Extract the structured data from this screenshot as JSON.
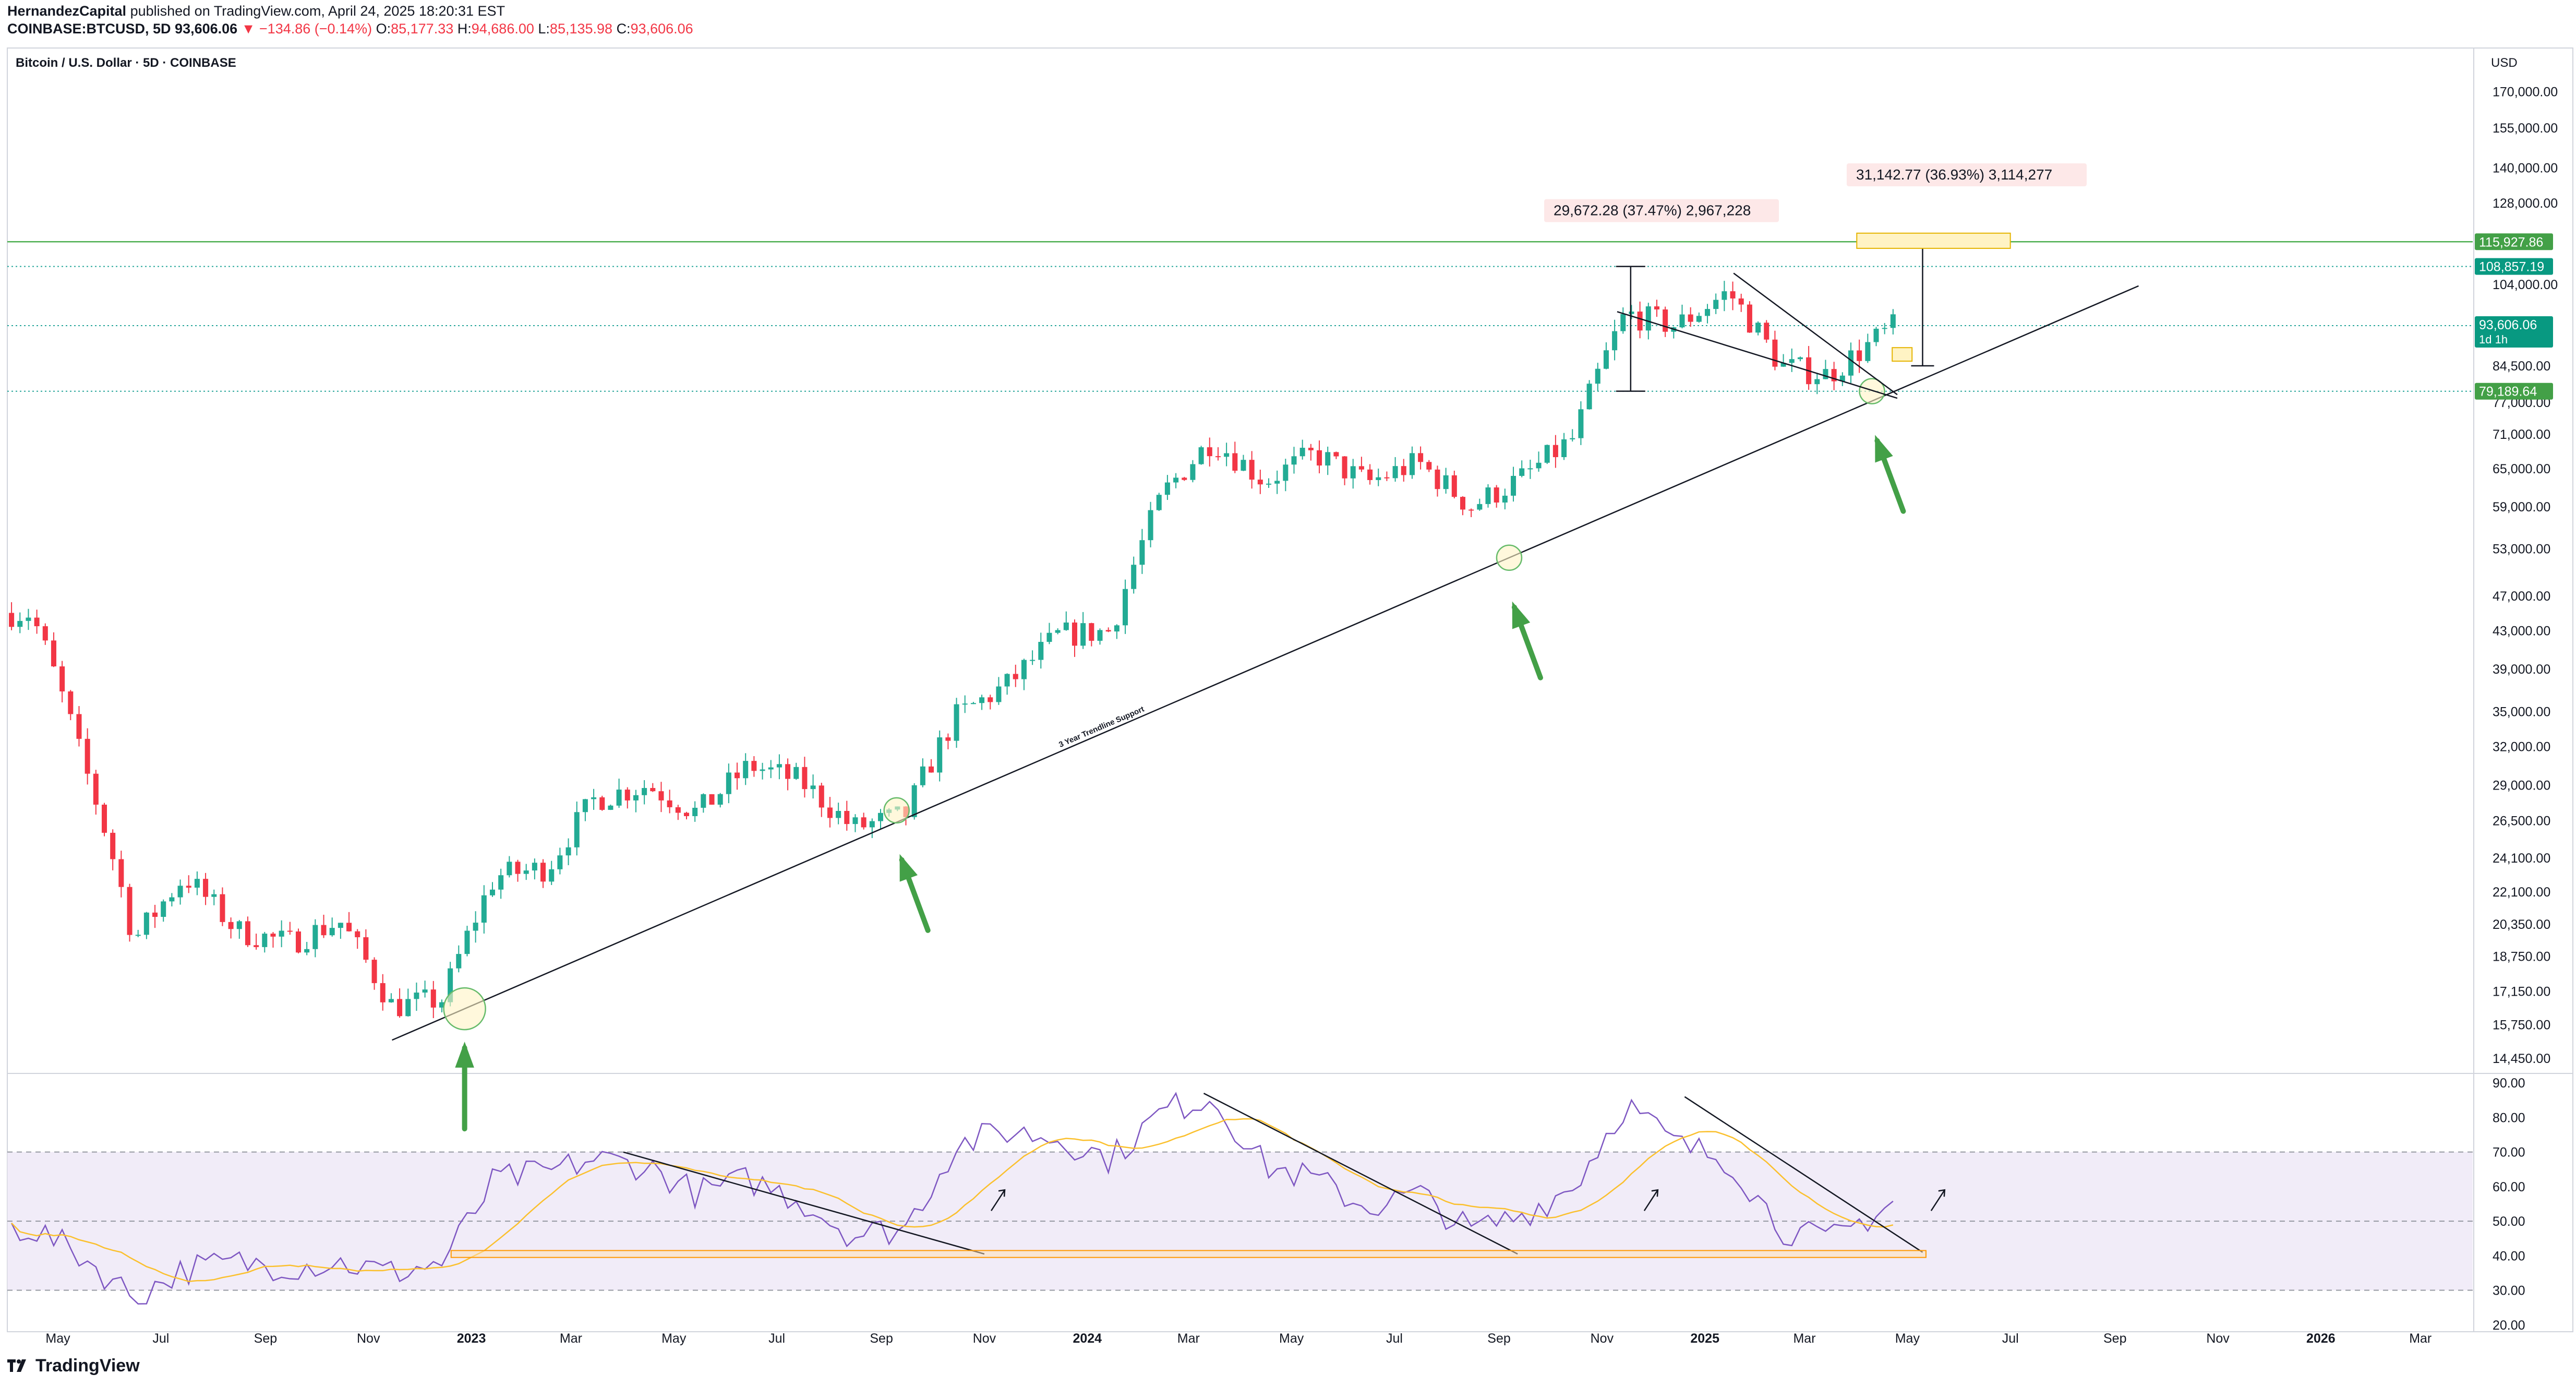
{
  "header": {
    "author": "HernandezCapital",
    "published_text": "published on TradingView.com, April 24, 2025 18:20:31 EST",
    "symbol_line": "COINBASE:BTCUSD, 5D",
    "last": "93,606.06",
    "change": "▼ −134.86 (−0.14%)",
    "o_label": "O:",
    "o_val": "85,177.33",
    "h_label": "H:",
    "h_val": "94,686.00",
    "l_label": "L:",
    "l_val": "85,135.98",
    "c_label": "C:",
    "c_val": "93,606.06"
  },
  "footer": {
    "brand": "TradingView",
    "logo_icon": "tradingview-logo-icon"
  },
  "colors": {
    "up": "#22ab94",
    "down": "#f23645",
    "rsi": "#7e57c2",
    "rsi_ma": "#fbc02d",
    "green_line": "#4caf50",
    "band": "#ede7f6"
  },
  "chart_data": {
    "type": "candlestick",
    "title": "Bitcoin / U.S. Dollar · 5D · COINBASE",
    "currency": "USD",
    "y_scale": "log",
    "ylim": [
      14000,
      190000
    ],
    "y_ticks": [
      "170,000.00",
      "155,000.00",
      "140,000.00",
      "128,000.00",
      "104,000.00",
      "84,500.00",
      "77,000.00",
      "71,000.00",
      "65,000.00",
      "59,000.00",
      "53,000.00",
      "47,000.00",
      "43,000.00",
      "39,000.00",
      "35,000.00",
      "32,000.00",
      "29,000.00",
      "26,500.00",
      "24,100.00",
      "22,100.00",
      "20,350.00",
      "18,750.00",
      "17,150.00",
      "15,750.00",
      "14,450.00"
    ],
    "x_ticks": [
      "May",
      "Jul",
      "Sep",
      "Nov",
      "2023",
      "Mar",
      "May",
      "Jul",
      "Sep",
      "Nov",
      "2024",
      "Mar",
      "May",
      "Jul",
      "Sep",
      "Nov",
      "2025",
      "Mar",
      "May",
      "Jul",
      "Sep",
      "Nov",
      "2026",
      "Mar"
    ],
    "price_labels": [
      {
        "text": "115,927.86",
        "style": "green"
      },
      {
        "text": "108,857.19",
        "style": "teal"
      },
      {
        "text": "93,606.06",
        "sub": "1d 1h",
        "style": "teal"
      },
      {
        "text": "79,189.64",
        "style": "green"
      }
    ],
    "levels": [
      115927.86,
      108857.19,
      93606.06,
      79189.64
    ],
    "measure_labels": [
      {
        "text": "29,672.28 (37.47%) 2,967,228"
      },
      {
        "text": "31,142.77 (36.93%) 3,114,277"
      }
    ],
    "trendline_label": "3 Year Trendline Support",
    "candles_monthly_anchor": [
      {
        "t": "2022-04",
        "p": 45000
      },
      {
        "t": "2022-05",
        "p": 31000
      },
      {
        "t": "2022-06",
        "p": 19500
      },
      {
        "t": "2022-07",
        "p": 23000
      },
      {
        "t": "2022-08",
        "p": 20000
      },
      {
        "t": "2022-09",
        "p": 19400
      },
      {
        "t": "2022-10",
        "p": 20500
      },
      {
        "t": "2022-11",
        "p": 16500
      },
      {
        "t": "2022-12",
        "p": 16800
      },
      {
        "t": "2023-01",
        "p": 23000
      },
      {
        "t": "2023-02",
        "p": 23500
      },
      {
        "t": "2023-03",
        "p": 28000
      },
      {
        "t": "2023-04",
        "p": 29000
      },
      {
        "t": "2023-05",
        "p": 27000
      },
      {
        "t": "2023-06",
        "p": 30500
      },
      {
        "t": "2023-07",
        "p": 29300
      },
      {
        "t": "2023-08",
        "p": 26000
      },
      {
        "t": "2023-09",
        "p": 26800
      },
      {
        "t": "2023-10",
        "p": 34500
      },
      {
        "t": "2023-11",
        "p": 37500
      },
      {
        "t": "2023-12",
        "p": 42500
      },
      {
        "t": "2024-01",
        "p": 43000
      },
      {
        "t": "2024-02",
        "p": 61000
      },
      {
        "t": "2024-03",
        "p": 70000
      },
      {
        "t": "2024-04",
        "p": 63000
      },
      {
        "t": "2024-05",
        "p": 67500
      },
      {
        "t": "2024-06",
        "p": 62700
      },
      {
        "t": "2024-07",
        "p": 66000
      },
      {
        "t": "2024-08",
        "p": 59000
      },
      {
        "t": "2024-09",
        "p": 63500
      },
      {
        "t": "2024-10",
        "p": 70200
      },
      {
        "t": "2024-11",
        "p": 96500
      },
      {
        "t": "2024-12",
        "p": 93500
      },
      {
        "t": "2025-01",
        "p": 102000
      },
      {
        "t": "2025-02",
        "p": 84500
      },
      {
        "t": "2025-03",
        "p": 82500
      },
      {
        "t": "2025-04-24",
        "p": 93606
      }
    ],
    "rsi": {
      "y_ticks": [
        "90.00",
        "80.00",
        "70.00",
        "60.00",
        "50.00",
        "40.00",
        "30.00",
        "20.00"
      ],
      "ylim": [
        18,
        92
      ],
      "band": [
        30,
        70
      ],
      "mid": 50,
      "monthly_anchor": [
        {
          "t": "2022-04",
          "v": 48
        },
        {
          "t": "2022-05",
          "v": 40
        },
        {
          "t": "2022-06",
          "v": 28
        },
        {
          "t": "2022-07",
          "v": 36
        },
        {
          "t": "2022-08",
          "v": 38
        },
        {
          "t": "2022-09",
          "v": 37
        },
        {
          "t": "2022-10",
          "v": 38
        },
        {
          "t": "2022-11",
          "v": 35
        },
        {
          "t": "2022-12",
          "v": 38
        },
        {
          "t": "2023-01",
          "v": 62
        },
        {
          "t": "2023-02",
          "v": 64
        },
        {
          "t": "2023-03",
          "v": 68
        },
        {
          "t": "2023-04",
          "v": 66
        },
        {
          "t": "2023-05",
          "v": 58
        },
        {
          "t": "2023-06",
          "v": 62
        },
        {
          "t": "2023-07",
          "v": 56
        },
        {
          "t": "2023-08",
          "v": 46
        },
        {
          "t": "2023-09",
          "v": 48
        },
        {
          "t": "2023-10",
          "v": 72
        },
        {
          "t": "2023-11",
          "v": 76
        },
        {
          "t": "2023-12",
          "v": 74
        },
        {
          "t": "2024-01",
          "v": 68
        },
        {
          "t": "2024-02",
          "v": 82
        },
        {
          "t": "2024-03",
          "v": 86
        },
        {
          "t": "2024-04",
          "v": 66
        },
        {
          "t": "2024-05",
          "v": 62
        },
        {
          "t": "2024-06",
          "v": 54
        },
        {
          "t": "2024-07",
          "v": 58
        },
        {
          "t": "2024-08",
          "v": 47
        },
        {
          "t": "2024-09",
          "v": 52
        },
        {
          "t": "2024-10",
          "v": 60
        },
        {
          "t": "2024-11",
          "v": 84
        },
        {
          "t": "2024-12",
          "v": 72
        },
        {
          "t": "2025-01",
          "v": 68
        },
        {
          "t": "2025-02",
          "v": 48
        },
        {
          "t": "2025-03",
          "v": 44
        },
        {
          "t": "2025-04-24",
          "v": 56
        }
      ]
    },
    "marked_points": [
      {
        "t": "2022-12-28",
        "p": 16400
      },
      {
        "t": "2023-09-10",
        "p": 27200
      },
      {
        "t": "2024-09-07",
        "p": 51800
      },
      {
        "t": "2025-04-10",
        "p": 79200
      }
    ]
  }
}
